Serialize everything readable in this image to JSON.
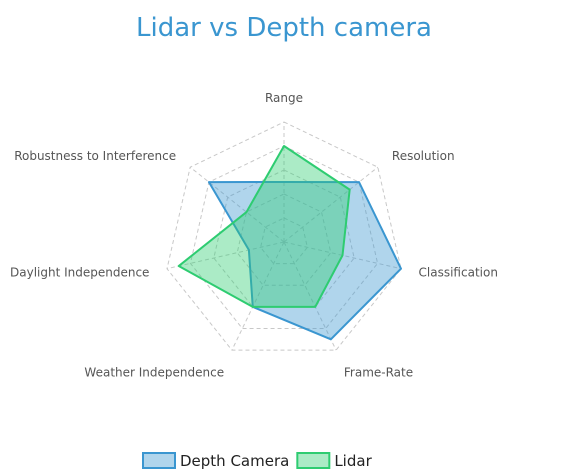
{
  "chart_data": {
    "type": "radar",
    "title": "Lidar vs Depth camera",
    "axes": [
      "Range",
      "Resolution",
      "Classification",
      "Frame-Rate",
      "Weather Independence",
      "Daylight Independence",
      "Robustness to Interference"
    ],
    "rlim": [
      0,
      5
    ],
    "grid_rings": 5,
    "series": [
      {
        "name": "Depth Camera",
        "values": [
          2.5,
          4,
          5,
          4.5,
          3,
          1.5,
          4
        ],
        "stroke": "#3a96d0",
        "fill": "#3a96d0"
      },
      {
        "name": "Lidar",
        "values": [
          4,
          3.5,
          2.5,
          3,
          3,
          4.5,
          2
        ],
        "stroke": "#2ecc71",
        "fill": "#2ecc71"
      }
    ],
    "legend_position": "bottom",
    "grid": true
  }
}
